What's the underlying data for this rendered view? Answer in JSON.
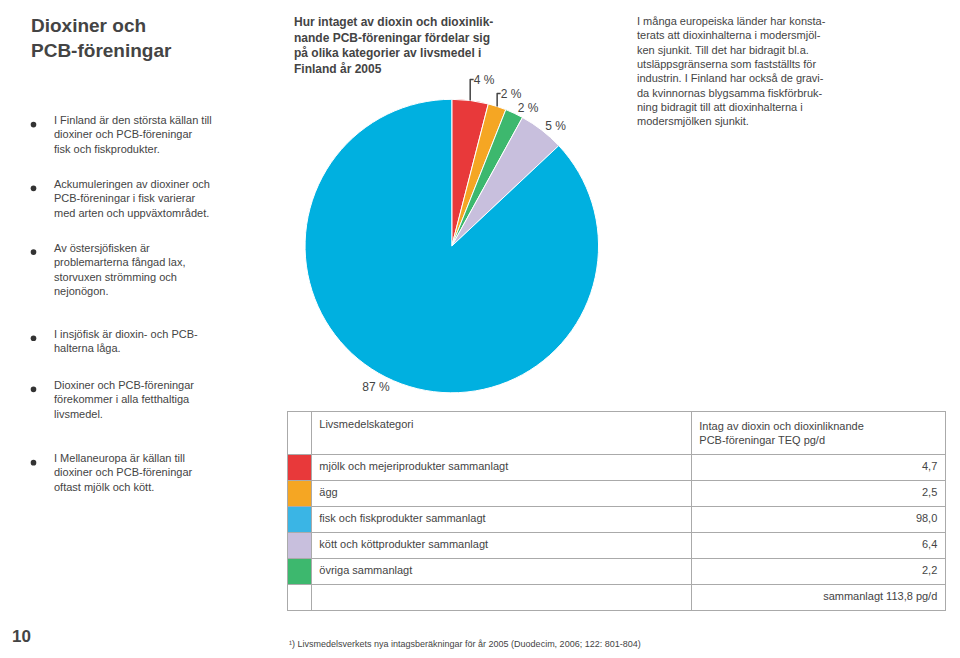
{
  "chart_data": [
    {
      "type": "pie",
      "title": "Hur intaget av dioxin och dioxinlik-\nnande PCB-föreningar fördelar sig\npå olika kategorier av livsmedel i\nFinland år 2005",
      "values": [
        4,
        2,
        2,
        5,
        87
      ],
      "value_labels": [
        "4 %",
        "2 %",
        "2 %",
        "5 %",
        "87 %"
      ],
      "colors": [
        "#e8393a",
        "#f5a623",
        "#3db86e",
        "#c8bfdd",
        "#00b0e0"
      ],
      "data_labels": true,
      "annotations": [
        "Dioxiner och\nPCB-föreningar",
        "I Finland är den största källan till\ndioxiner och PCB-föreningar\nfisk och fiskprodukter.",
        "Ackumuleringen av dioxiner och\nPCB-föreningar i fisk varierar\nmed arten och uppväxtområdet.",
        "Av östersjöfisken är\nproblemarterna fångad lax,\nstorvuxen strömming och\nnejonögon.",
        "I insjöfisk är dioxin- och PCB-\nhalterna låga.",
        "Dioxiner och PCB-föreningar\nförekommer i alla fetthaltiga\nlivsmedel.",
        "I Mellaneuropa är källan till\ndioxiner och PCB-föreningar\noftast mjölk och kött.",
        "10",
        "I många europeiska länder har konsta-\nterats att dioxinhalterna i modersmjöl-\nken sjunkit. Till det har bidragit bl.a.\nutsläppsgränserna som fastställts för\nindustrin. I Finland har också de gravi-\nda kvinnornas blygsamma fiskförbruk-\nning bidragit till att dioxinhalterna i\nmodersmjölken sjunkit.",
        "¹) Livsmedelsverkets nya intagsberäkningar för år 2005 (Duodecim, 2006; 122: 801-804)"
      ]
    },
    {
      "type": "table",
      "columns": [
        "Livsmedelskategori",
        "Intag av dioxin och dioxinliknande\nPCB-föreningar TEQ pg/d"
      ],
      "categories": [
        "mjölk och mejeriprodukter sammanlagt",
        "ägg",
        "fisk och fiskprodukter sammanlagt",
        "kött och köttprodukter sammanlagt",
        "övriga sammanlagt"
      ],
      "values": [
        4.7,
        2.5,
        98.0,
        6.4,
        2.2
      ],
      "value_labels": [
        "4,7",
        "2,5",
        "98,0",
        "6,4",
        "2,2"
      ],
      "colors": [
        "#e8393a",
        "#f5a623",
        "#3ab5e5",
        "#c8bfdd",
        "#3db86e"
      ],
      "total_label": "sammanlagt 113,8 pg/d"
    }
  ]
}
